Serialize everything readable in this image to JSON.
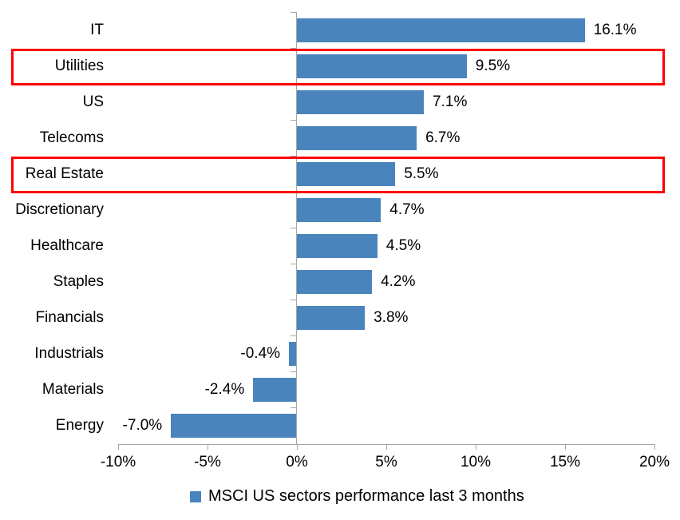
{
  "chart_data": {
    "type": "bar",
    "orientation": "horizontal",
    "categories": [
      "IT",
      "Utilities",
      "US",
      "Telecoms",
      "Real Estate",
      "Discretionary",
      "Healthcare",
      "Staples",
      "Financials",
      "Industrials",
      "Materials",
      "Energy"
    ],
    "values": [
      16.1,
      9.5,
      7.1,
      6.7,
      5.5,
      4.7,
      4.5,
      4.2,
      3.8,
      -0.4,
      -2.4,
      -7.0
    ],
    "value_labels": [
      "16.1%",
      "9.5%",
      "7.1%",
      "6.7%",
      "5.5%",
      "4.7%",
      "4.5%",
      "4.2%",
      "3.8%",
      "-0.4%",
      "-2.4%",
      "-7.0%"
    ],
    "highlighted_categories": [
      "Utilities",
      "Real Estate"
    ],
    "x_tick_labels": [
      "-10%",
      "-5%",
      "0%",
      "5%",
      "10%",
      "15%",
      "20%"
    ],
    "x_tick_values": [
      -10,
      -5,
      0,
      5,
      10,
      15,
      20
    ],
    "xlim": [
      -10,
      20
    ],
    "legend": "MSCI US sectors performance last 3 months",
    "bar_color": "#4A84BC",
    "highlight_color": "#FF0000",
    "axis_color": "#A6A6A6",
    "grid": "off",
    "legend_position": "bottom"
  }
}
